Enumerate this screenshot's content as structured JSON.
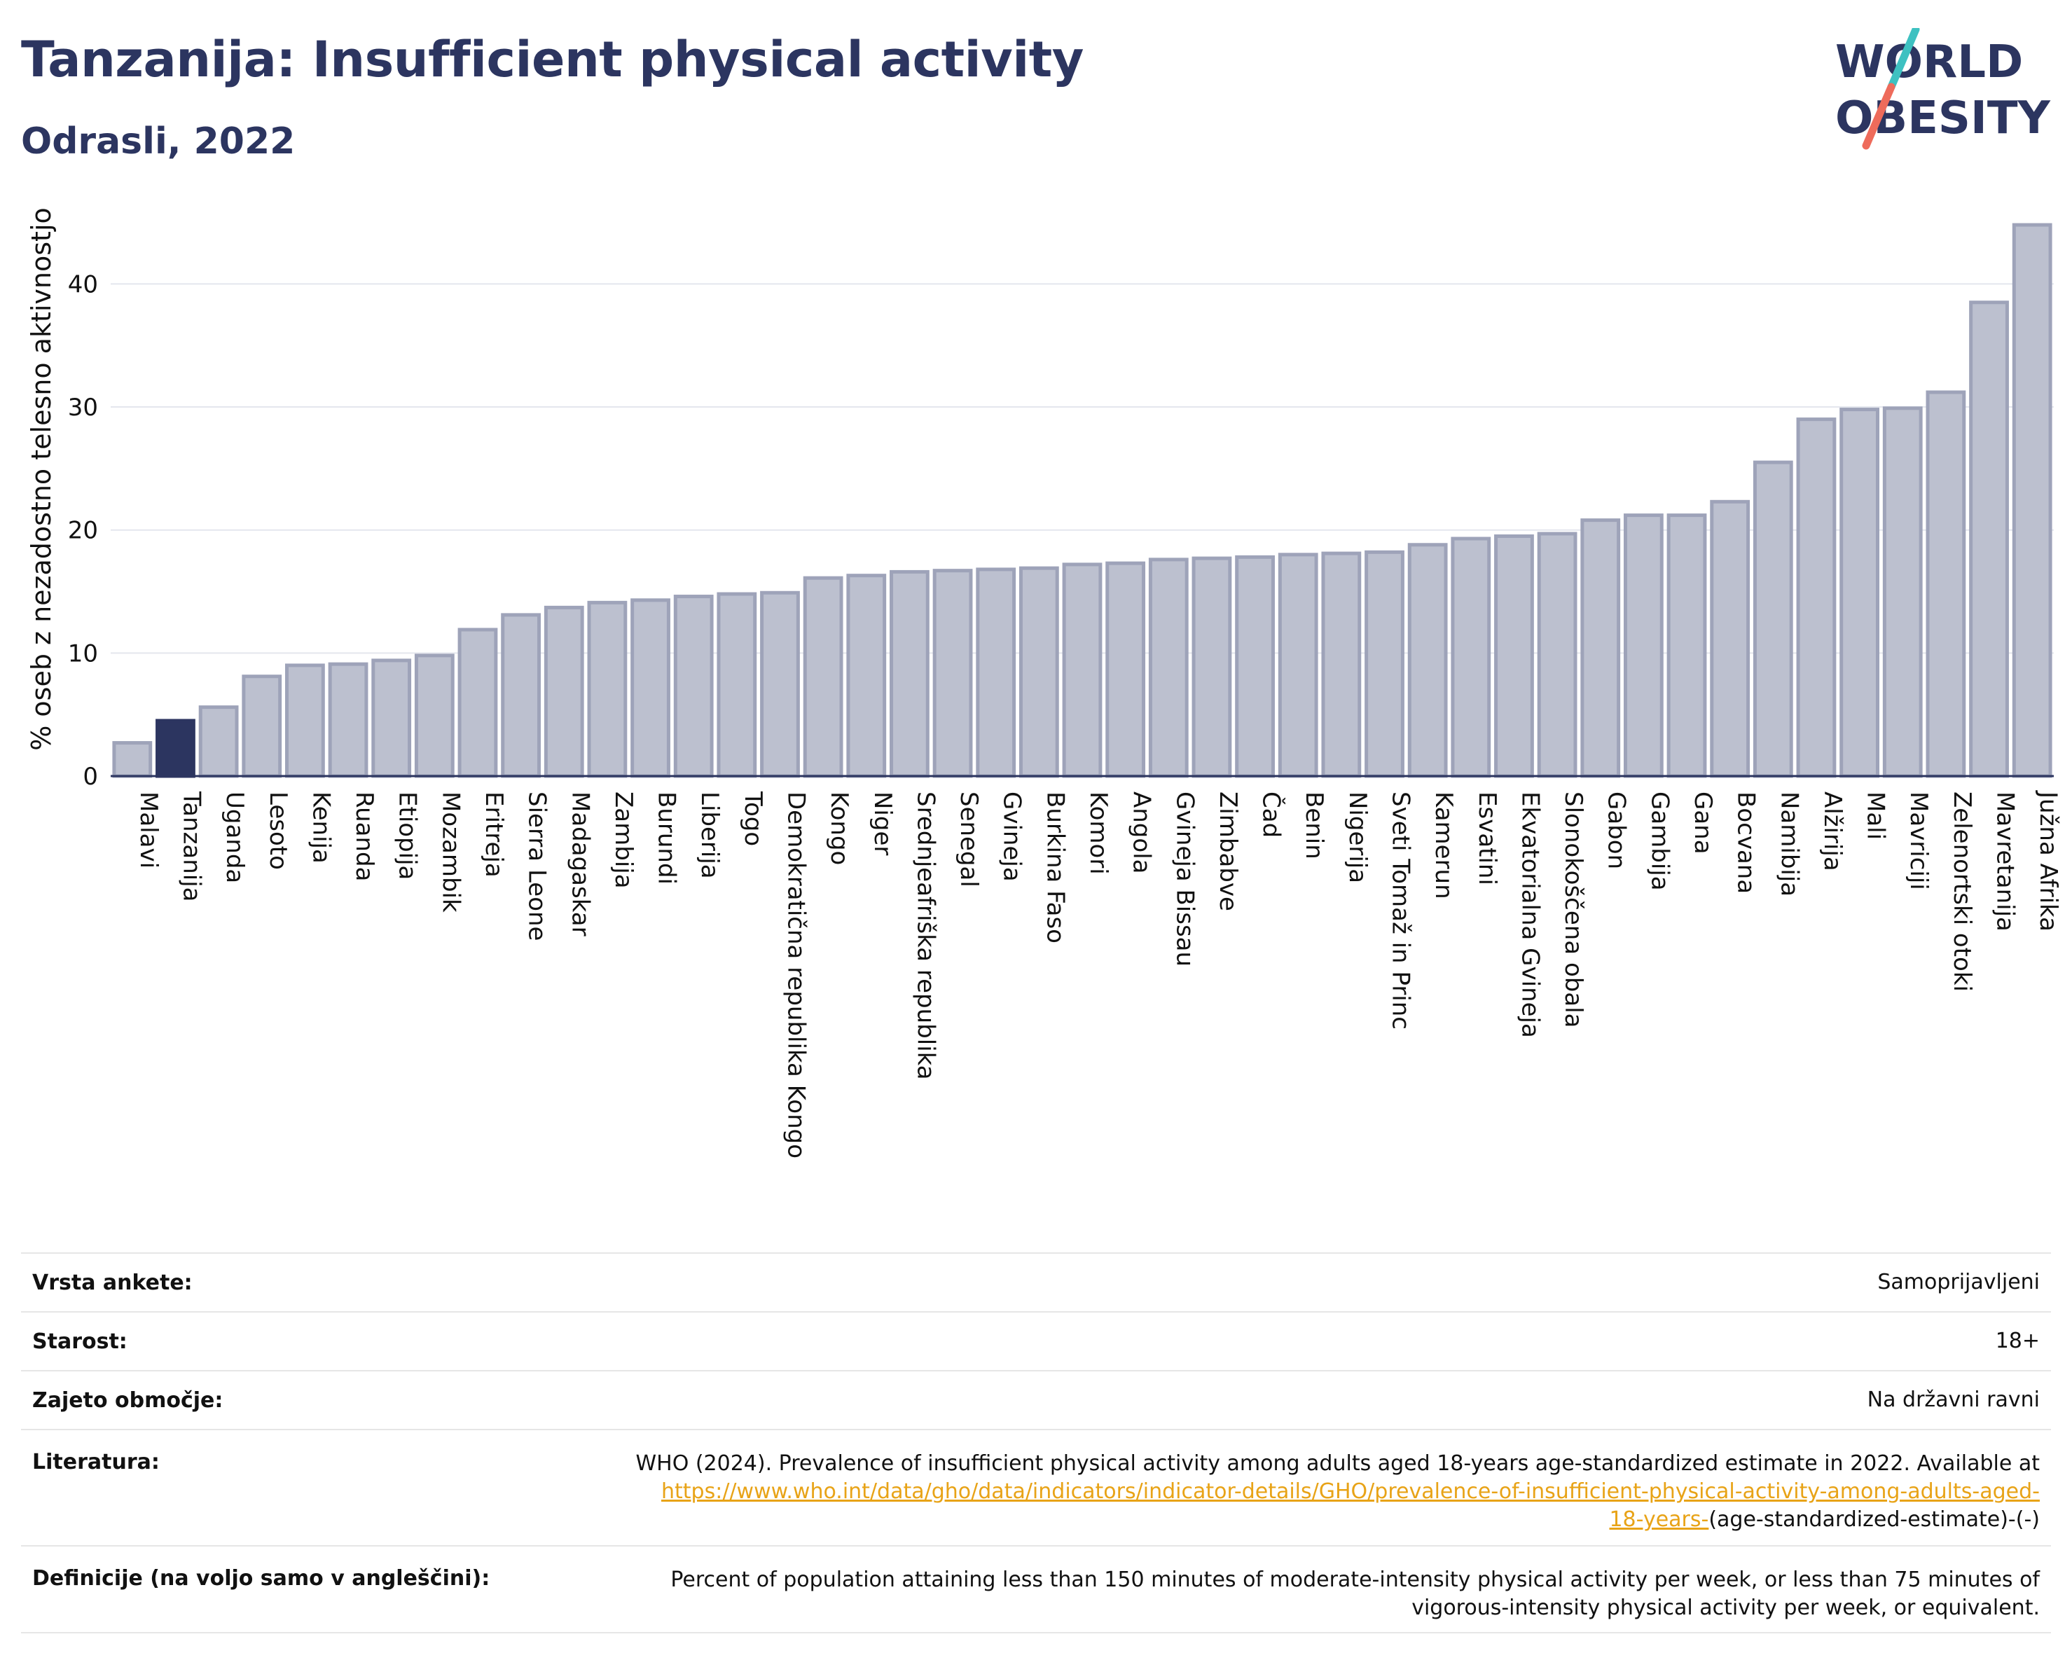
{
  "header": {
    "title": "Tanzanija: Insufficient physical activity",
    "subtitle": "Odrasli, 2022"
  },
  "logo": {
    "line1": "WORLD",
    "line2": "OBESITY",
    "colors": {
      "text": "#2c3560",
      "slash_teal": "#3ec1c1",
      "slash_coral": "#ee6b5b"
    }
  },
  "colors": {
    "bar": "#bcc0cf",
    "bar_border": "#9ea3b9",
    "highlight": "#2c3560",
    "grid": "#e4e6ee",
    "axis": "#2c3560",
    "link": "#e8a317"
  },
  "chart_data": {
    "type": "bar",
    "ylabel": "% oseb z nezadostno telesno aktivnostjo",
    "ylim": [
      0,
      46
    ],
    "yticks": [
      0,
      10,
      20,
      30,
      40
    ],
    "grid": true,
    "highlight": "Tanzanija",
    "categories": [
      "Malavi",
      "Tanzanija",
      "Uganda",
      "Lesoto",
      "Kenija",
      "Ruanda",
      "Etiopija",
      "Mozambik",
      "Eritreja",
      "Sierra Leone",
      "Madagaskar",
      "Zambija",
      "Burundi",
      "Liberija",
      "Togo",
      "Demokratična republika Kongo",
      "Kongo",
      "Niger",
      "Srednjeafriška republika",
      "Senegal",
      "Gvineja",
      "Burkina Faso",
      "Komori",
      "Angola",
      "Gvineja Bissau",
      "Zimbabve",
      "Čad",
      "Benin",
      "Nigerija",
      "Sveti Tomaž in Princ",
      "Kamerun",
      "Esvatini",
      "Ekvatorialna Gvineja",
      "Slonokoščena obala",
      "Gabon",
      "Gambija",
      "Gana",
      "Bocvana",
      "Namibija",
      "Alžirija",
      "Mali",
      "Mavriciji",
      "Zelenortski otoki",
      "Mavretanija",
      "Južna Afrika"
    ],
    "values": [
      2.7,
      4.5,
      5.6,
      8.1,
      9.0,
      9.1,
      9.4,
      9.8,
      11.9,
      13.1,
      13.7,
      14.1,
      14.3,
      14.6,
      14.8,
      14.9,
      16.1,
      16.3,
      16.6,
      16.7,
      16.8,
      16.9,
      17.2,
      17.3,
      17.6,
      17.7,
      17.8,
      18.0,
      18.1,
      18.2,
      18.8,
      19.3,
      19.5,
      19.7,
      20.8,
      21.2,
      21.2,
      22.3,
      25.5,
      29.0,
      29.8,
      29.9,
      31.2,
      38.5,
      44.8
    ]
  },
  "info": {
    "rows": [
      {
        "label": "Vrsta ankete:",
        "value": "Samoprijavljeni"
      },
      {
        "label": "Starost:",
        "value": "18+"
      },
      {
        "label": "Zajeto območje:",
        "value": "Na državni ravni"
      }
    ],
    "literature": {
      "label": "Literatura:",
      "text": "WHO (2024). Prevalence of insufficient physical activity among adults aged 18-years age-standardized estimate in 2022. Available at",
      "link_line1": "https://www.who.int/data/gho/data/indicators/indicator-details/GHO/prevalence-of-insufficient-physical-activity-among-adults-aged-",
      "link_line2": "18-years-",
      "suffix": "(age-standardized-estimate)-(-)"
    },
    "definition": {
      "label": "Definicije (na voljo samo v angleščini):",
      "text": "Percent of population attaining less than 150 minutes of moderate-intensity physical activity per week, or less than 75 minutes of vigorous-intensity physical activity per week, or equivalent."
    }
  }
}
